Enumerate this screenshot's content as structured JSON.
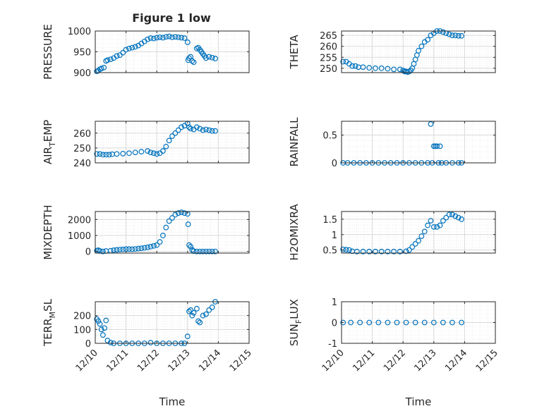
{
  "figure_title": "Figure 1 low",
  "colors": {
    "marker": "#0072BD",
    "axis": "#262626",
    "grid": "#d9d9d9",
    "minor_grid": "#e6e6e6"
  },
  "x_ticks": [
    "12/10",
    "12/11",
    "12/12",
    "12/13",
    "12/14",
    "12/15"
  ],
  "xlabel": "Time",
  "chart_data": [
    {
      "type": "scatter",
      "ylabel": "PRESSURE",
      "ylim": [
        900,
        1000
      ],
      "yticks": [
        900,
        950,
        1000
      ],
      "xlim": [
        0,
        5
      ],
      "grid": true,
      "points": [
        [
          0.05,
          903
        ],
        [
          0.1,
          905
        ],
        [
          0.15,
          908
        ],
        [
          0.2,
          910
        ],
        [
          0.28,
          912
        ],
        [
          0.35,
          928
        ],
        [
          0.4,
          930
        ],
        [
          0.5,
          932
        ],
        [
          0.6,
          935
        ],
        [
          0.7,
          940
        ],
        [
          0.8,
          942
        ],
        [
          0.9,
          948
        ],
        [
          1.0,
          955
        ],
        [
          1.1,
          958
        ],
        [
          1.2,
          960
        ],
        [
          1.3,
          962
        ],
        [
          1.4,
          965
        ],
        [
          1.5,
          970
        ],
        [
          1.6,
          975
        ],
        [
          1.7,
          980
        ],
        [
          1.8,
          983
        ],
        [
          1.9,
          982
        ],
        [
          2.0,
          984
        ],
        [
          2.1,
          985
        ],
        [
          2.2,
          984
        ],
        [
          2.3,
          986
        ],
        [
          2.4,
          987
        ],
        [
          2.5,
          985
        ],
        [
          2.6,
          986
        ],
        [
          2.7,
          985
        ],
        [
          2.8,
          984
        ],
        [
          2.9,
          983
        ],
        [
          3.0,
          973
        ],
        [
          3.02,
          930
        ],
        [
          3.05,
          935
        ],
        [
          3.1,
          938
        ],
        [
          3.15,
          928
        ],
        [
          3.2,
          925
        ],
        [
          3.3,
          958
        ],
        [
          3.35,
          960
        ],
        [
          3.4,
          955
        ],
        [
          3.45,
          950
        ],
        [
          3.5,
          945
        ],
        [
          3.55,
          940
        ],
        [
          3.6,
          935
        ],
        [
          3.7,
          938
        ],
        [
          3.8,
          936
        ],
        [
          3.9,
          934
        ]
      ]
    },
    {
      "type": "scatter",
      "ylabel": "THETA",
      "ylim": [
        248,
        267
      ],
      "yticks": [
        250,
        255,
        260,
        265
      ],
      "xlim": [
        0,
        5
      ],
      "grid": true,
      "points": [
        [
          0.05,
          253
        ],
        [
          0.15,
          253
        ],
        [
          0.25,
          252
        ],
        [
          0.35,
          251
        ],
        [
          0.45,
          251
        ],
        [
          0.55,
          250.5
        ],
        [
          0.7,
          250.5
        ],
        [
          0.9,
          250.2
        ],
        [
          1.1,
          250
        ],
        [
          1.3,
          250
        ],
        [
          1.5,
          249.8
        ],
        [
          1.7,
          249.5
        ],
        [
          1.9,
          249.5
        ],
        [
          2.0,
          249
        ],
        [
          2.05,
          248.5
        ],
        [
          2.1,
          248.5
        ],
        [
          2.15,
          248.2
        ],
        [
          2.2,
          248.5
        ],
        [
          2.25,
          249
        ],
        [
          2.3,
          250
        ],
        [
          2.35,
          252
        ],
        [
          2.4,
          254
        ],
        [
          2.45,
          256
        ],
        [
          2.5,
          258
        ],
        [
          2.6,
          260
        ],
        [
          2.7,
          262
        ],
        [
          2.8,
          263
        ],
        [
          2.9,
          265
        ],
        [
          3.0,
          266
        ],
        [
          3.1,
          267
        ],
        [
          3.2,
          267
        ],
        [
          3.3,
          266.5
        ],
        [
          3.4,
          266
        ],
        [
          3.5,
          265.5
        ],
        [
          3.6,
          265
        ],
        [
          3.7,
          265
        ],
        [
          3.8,
          264.8
        ],
        [
          3.9,
          264.8
        ]
      ]
    },
    {
      "type": "scatter",
      "ylabel": "AIR_TEMP",
      "ylim": [
        240,
        268
      ],
      "yticks": [
        240,
        250,
        260
      ],
      "xlim": [
        0,
        5
      ],
      "grid": true,
      "points": [
        [
          0.05,
          246
        ],
        [
          0.15,
          246
        ],
        [
          0.25,
          245.5
        ],
        [
          0.35,
          245.5
        ],
        [
          0.45,
          245.5
        ],
        [
          0.55,
          245.8
        ],
        [
          0.7,
          246
        ],
        [
          0.9,
          246.2
        ],
        [
          1.1,
          246.5
        ],
        [
          1.3,
          247
        ],
        [
          1.5,
          247.5
        ],
        [
          1.7,
          248
        ],
        [
          1.8,
          247
        ],
        [
          1.9,
          246.5
        ],
        [
          2.0,
          246
        ],
        [
          2.1,
          246.5
        ],
        [
          2.2,
          248
        ],
        [
          2.3,
          251
        ],
        [
          2.4,
          255
        ],
        [
          2.5,
          258
        ],
        [
          2.6,
          260
        ],
        [
          2.7,
          262
        ],
        [
          2.8,
          264
        ],
        [
          2.9,
          265
        ],
        [
          3.0,
          266.5
        ],
        [
          3.05,
          264
        ],
        [
          3.1,
          263
        ],
        [
          3.2,
          262.5
        ],
        [
          3.3,
          264
        ],
        [
          3.4,
          263
        ],
        [
          3.5,
          262
        ],
        [
          3.6,
          262.5
        ],
        [
          3.7,
          262
        ],
        [
          3.8,
          261.5
        ],
        [
          3.9,
          261.5
        ]
      ]
    },
    {
      "type": "scatter",
      "ylabel": "RAINFALL",
      "ylim": [
        0,
        0.75
      ],
      "yticks": [
        0,
        0.5
      ],
      "xlim": [
        0,
        5
      ],
      "grid": true,
      "points": [
        [
          0.05,
          0
        ],
        [
          0.2,
          0
        ],
        [
          0.4,
          0
        ],
        [
          0.6,
          0
        ],
        [
          0.8,
          0
        ],
        [
          1.0,
          0
        ],
        [
          1.2,
          0
        ],
        [
          1.4,
          0
        ],
        [
          1.6,
          0
        ],
        [
          1.8,
          0
        ],
        [
          2.0,
          0
        ],
        [
          2.2,
          0
        ],
        [
          2.4,
          0
        ],
        [
          2.6,
          0
        ],
        [
          2.8,
          0
        ],
        [
          2.9,
          0.7
        ],
        [
          2.95,
          0
        ],
        [
          3.0,
          0.3
        ],
        [
          3.05,
          0.3
        ],
        [
          3.1,
          0.3
        ],
        [
          3.15,
          0
        ],
        [
          3.2,
          0.3
        ],
        [
          3.25,
          0
        ],
        [
          3.4,
          0
        ],
        [
          3.6,
          0
        ],
        [
          3.8,
          0
        ],
        [
          3.9,
          0
        ]
      ]
    },
    {
      "type": "scatter",
      "ylabel": "MIXDEPTH",
      "ylim": [
        -100,
        2500
      ],
      "yticks": [
        0,
        1000,
        2000
      ],
      "xlim": [
        0,
        5
      ],
      "grid": true,
      "points": [
        [
          0.05,
          50
        ],
        [
          0.1,
          80
        ],
        [
          0.15,
          30
        ],
        [
          0.25,
          0
        ],
        [
          0.35,
          30
        ],
        [
          0.5,
          50
        ],
        [
          0.6,
          80
        ],
        [
          0.7,
          100
        ],
        [
          0.8,
          120
        ],
        [
          0.9,
          130
        ],
        [
          1.0,
          150
        ],
        [
          1.1,
          150
        ],
        [
          1.2,
          140
        ],
        [
          1.3,
          160
        ],
        [
          1.4,
          180
        ],
        [
          1.5,
          200
        ],
        [
          1.6,
          230
        ],
        [
          1.7,
          260
        ],
        [
          1.8,
          300
        ],
        [
          1.9,
          350
        ],
        [
          2.0,
          400
        ],
        [
          2.1,
          600
        ],
        [
          2.2,
          1000
        ],
        [
          2.3,
          1500
        ],
        [
          2.4,
          1900
        ],
        [
          2.5,
          2100
        ],
        [
          2.6,
          2300
        ],
        [
          2.7,
          2400
        ],
        [
          2.8,
          2450
        ],
        [
          2.9,
          2400
        ],
        [
          3.0,
          2350
        ],
        [
          3.02,
          1700
        ],
        [
          3.05,
          400
        ],
        [
          3.1,
          300
        ],
        [
          3.15,
          100
        ],
        [
          3.2,
          20
        ],
        [
          3.3,
          0
        ],
        [
          3.4,
          0
        ],
        [
          3.5,
          0
        ],
        [
          3.6,
          0
        ],
        [
          3.7,
          0
        ],
        [
          3.8,
          0
        ],
        [
          3.9,
          0
        ]
      ]
    },
    {
      "type": "scatter",
      "ylabel": "H2OMIXRA",
      "ylim": [
        0.4,
        1.75
      ],
      "yticks": [
        0.5,
        1,
        1.5
      ],
      "xlim": [
        0,
        5
      ],
      "grid": true,
      "points": [
        [
          0.05,
          0.52
        ],
        [
          0.15,
          0.51
        ],
        [
          0.25,
          0.5
        ],
        [
          0.35,
          0.46
        ],
        [
          0.5,
          0.45
        ],
        [
          0.7,
          0.45
        ],
        [
          0.9,
          0.45
        ],
        [
          1.1,
          0.45
        ],
        [
          1.3,
          0.45
        ],
        [
          1.5,
          0.45
        ],
        [
          1.7,
          0.45
        ],
        [
          1.9,
          0.45
        ],
        [
          2.1,
          0.46
        ],
        [
          2.2,
          0.5
        ],
        [
          2.3,
          0.6
        ],
        [
          2.4,
          0.7
        ],
        [
          2.5,
          0.8
        ],
        [
          2.6,
          0.95
        ],
        [
          2.7,
          1.1
        ],
        [
          2.8,
          1.3
        ],
        [
          2.9,
          1.45
        ],
        [
          3.0,
          1.25
        ],
        [
          3.1,
          1.25
        ],
        [
          3.2,
          1.3
        ],
        [
          3.3,
          1.45
        ],
        [
          3.4,
          1.55
        ],
        [
          3.5,
          1.65
        ],
        [
          3.6,
          1.65
        ],
        [
          3.7,
          1.6
        ],
        [
          3.8,
          1.55
        ],
        [
          3.9,
          1.5
        ]
      ]
    },
    {
      "type": "scatter",
      "ylabel": "TERR_MSL",
      "ylim": [
        0,
        300
      ],
      "yticks": [
        0,
        100,
        200
      ],
      "xlim": [
        0,
        5
      ],
      "grid": true,
      "points": [
        [
          0.05,
          175
        ],
        [
          0.1,
          160
        ],
        [
          0.15,
          140
        ],
        [
          0.2,
          100
        ],
        [
          0.25,
          60
        ],
        [
          0.3,
          110
        ],
        [
          0.35,
          165
        ],
        [
          0.4,
          20
        ],
        [
          0.5,
          5
        ],
        [
          0.6,
          0
        ],
        [
          0.8,
          0
        ],
        [
          1.0,
          0
        ],
        [
          1.2,
          0
        ],
        [
          1.4,
          0
        ],
        [
          1.6,
          0
        ],
        [
          1.8,
          5
        ],
        [
          2.0,
          0
        ],
        [
          2.2,
          0
        ],
        [
          2.4,
          0
        ],
        [
          2.6,
          0
        ],
        [
          2.8,
          0
        ],
        [
          2.9,
          0
        ],
        [
          3.0,
          50
        ],
        [
          3.05,
          230
        ],
        [
          3.1,
          240
        ],
        [
          3.15,
          200
        ],
        [
          3.2,
          220
        ],
        [
          3.3,
          250
        ],
        [
          3.35,
          160
        ],
        [
          3.4,
          150
        ],
        [
          3.5,
          200
        ],
        [
          3.6,
          210
        ],
        [
          3.7,
          240
        ],
        [
          3.8,
          260
        ],
        [
          3.9,
          300
        ]
      ]
    },
    {
      "type": "scatter",
      "ylabel": "SUN_FLUX",
      "ylim": [
        -1,
        1
      ],
      "yticks": [
        -1,
        0,
        1
      ],
      "xlim": [
        0,
        5
      ],
      "grid": true,
      "points": [
        [
          0.05,
          0
        ],
        [
          0.3,
          0
        ],
        [
          0.6,
          0
        ],
        [
          0.9,
          0
        ],
        [
          1.2,
          0
        ],
        [
          1.5,
          0
        ],
        [
          1.8,
          0
        ],
        [
          2.1,
          0
        ],
        [
          2.4,
          0
        ],
        [
          2.7,
          0
        ],
        [
          3.0,
          0
        ],
        [
          3.3,
          0
        ],
        [
          3.6,
          0
        ],
        [
          3.9,
          0
        ]
      ]
    }
  ]
}
